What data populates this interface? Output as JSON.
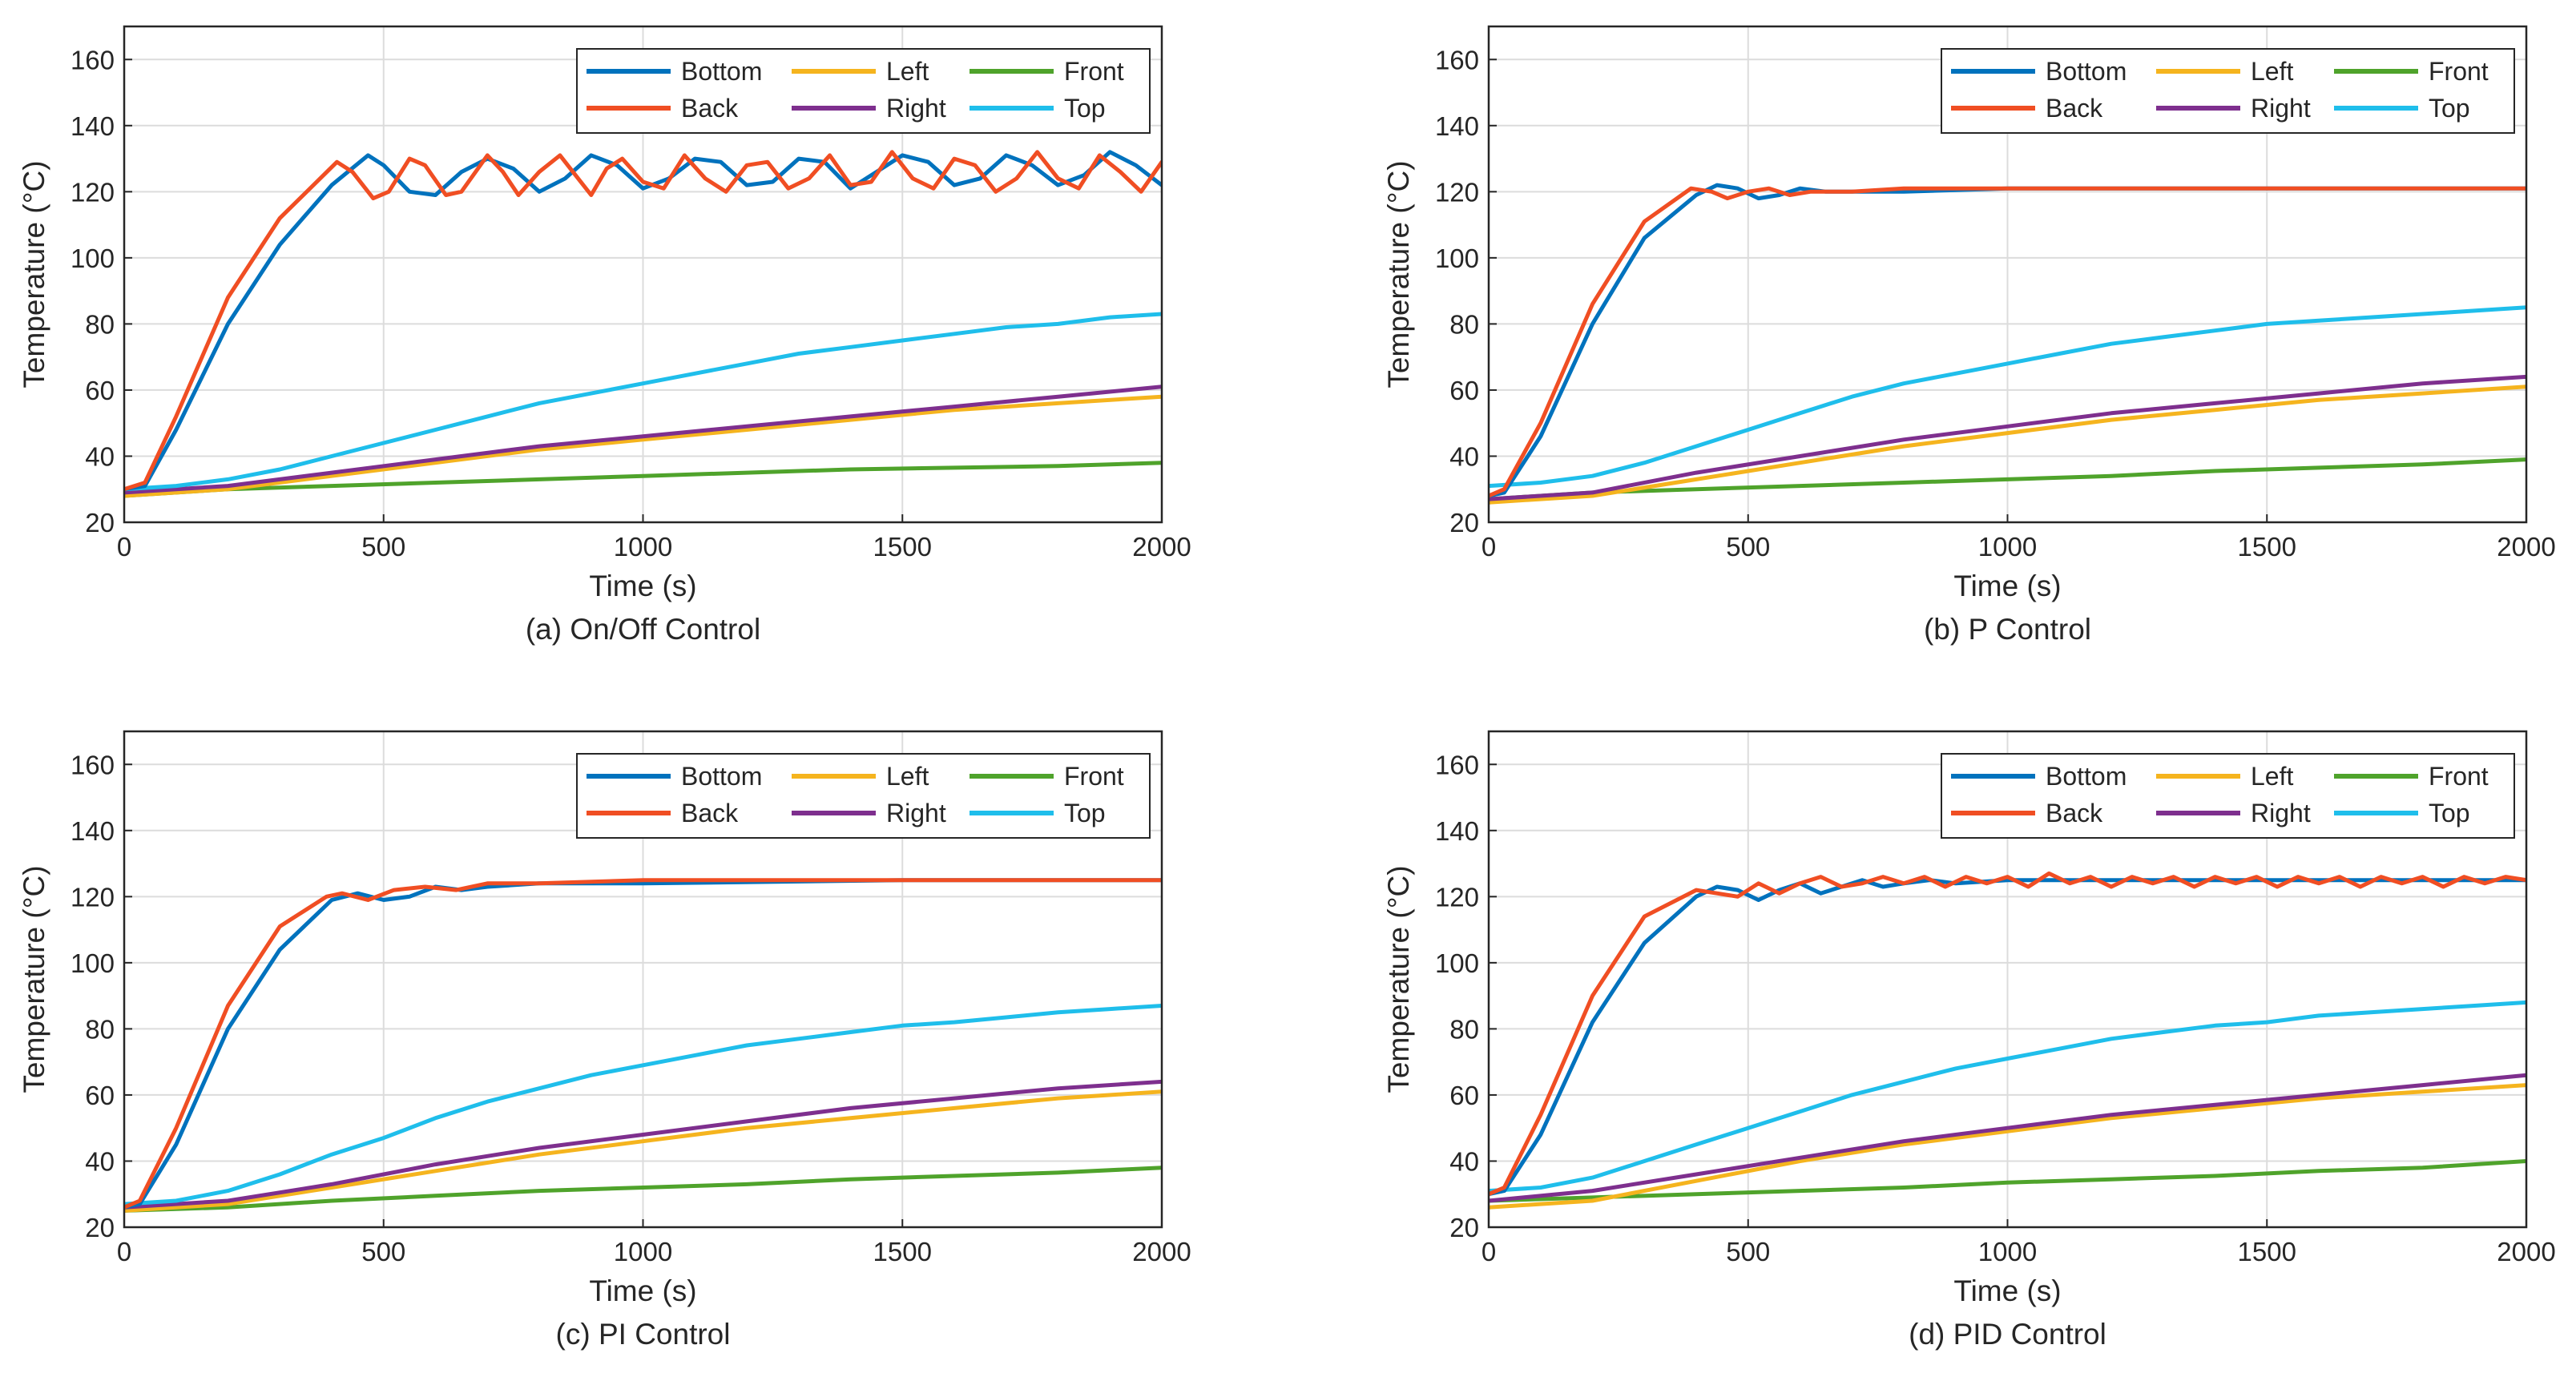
{
  "colors": {
    "Bottom": "#0072BD",
    "Back": "#F04E23",
    "Left": "#F5B41E",
    "Front": "#4FA32B",
    "Right": "#7E2F8E",
    "Top": "#1FBEEB"
  },
  "legend_order": [
    "Bottom",
    "Left",
    "Front",
    "Back",
    "Right",
    "Top"
  ],
  "chart_data": [
    {
      "type": "line",
      "caption": "(a) On/Off Control",
      "xlabel": "Time (s)",
      "ylabel": "Temperature (°C)",
      "xlim": [
        0,
        2000
      ],
      "ylim": [
        20,
        170
      ],
      "xticks": [
        0,
        500,
        1000,
        1500,
        2000
      ],
      "yticks": [
        20,
        40,
        60,
        80,
        100,
        120,
        140,
        160
      ],
      "grid": true,
      "legend": "top-right",
      "series": [
        {
          "name": "Bottom",
          "x": [
            0,
            40,
            100,
            200,
            300,
            400,
            470,
            500,
            550,
            600,
            650,
            700,
            750,
            800,
            850,
            900,
            950,
            1000,
            1050,
            1100,
            1150,
            1200,
            1250,
            1300,
            1350,
            1400,
            1450,
            1500,
            1550,
            1600,
            1650,
            1700,
            1750,
            1800,
            1850,
            1900,
            1950,
            2000
          ],
          "y": [
            30,
            31,
            48,
            80,
            104,
            122,
            131,
            128,
            120,
            119,
            126,
            130,
            127,
            120,
            124,
            131,
            128,
            121,
            124,
            130,
            129,
            122,
            123,
            130,
            129,
            121,
            126,
            131,
            129,
            122,
            124,
            131,
            128,
            122,
            125,
            132,
            128,
            122
          ]
        },
        {
          "name": "Back",
          "x": [
            0,
            40,
            100,
            200,
            300,
            410,
            440,
            480,
            510,
            550,
            580,
            620,
            650,
            700,
            730,
            760,
            800,
            840,
            870,
            900,
            930,
            960,
            1000,
            1040,
            1080,
            1120,
            1160,
            1200,
            1240,
            1280,
            1320,
            1360,
            1400,
            1440,
            1480,
            1520,
            1560,
            1600,
            1640,
            1680,
            1720,
            1760,
            1800,
            1840,
            1880,
            1920,
            1960,
            2000
          ],
          "y": [
            30,
            32,
            52,
            88,
            112,
            129,
            126,
            118,
            120,
            130,
            128,
            119,
            120,
            131,
            126,
            119,
            126,
            131,
            125,
            119,
            127,
            130,
            123,
            121,
            131,
            124,
            120,
            128,
            129,
            121,
            124,
            131,
            122,
            123,
            132,
            124,
            121,
            130,
            128,
            120,
            124,
            132,
            124,
            121,
            131,
            126,
            120,
            129
          ]
        },
        {
          "name": "Left",
          "x": [
            0,
            200,
            400,
            600,
            800,
            1000,
            1200,
            1400,
            1600,
            1800,
            2000
          ],
          "y": [
            28,
            30,
            34,
            38,
            42,
            45,
            48,
            51,
            54,
            56,
            58
          ]
        },
        {
          "name": "Right",
          "x": [
            0,
            200,
            400,
            600,
            800,
            1000,
            1200,
            1400,
            1600,
            1800,
            2000
          ],
          "y": [
            29,
            31,
            35,
            39,
            43,
            46,
            49,
            52,
            55,
            58,
            61
          ]
        },
        {
          "name": "Front",
          "x": [
            0,
            200,
            400,
            600,
            800,
            1000,
            1200,
            1400,
            1600,
            1800,
            2000
          ],
          "y": [
            28,
            30,
            31,
            32,
            33,
            34,
            35,
            36,
            36.5,
            37,
            38
          ]
        },
        {
          "name": "Top",
          "x": [
            0,
            100,
            200,
            300,
            400,
            500,
            600,
            700,
            800,
            900,
            1000,
            1100,
            1200,
            1300,
            1400,
            1500,
            1600,
            1700,
            1800,
            1900,
            2000
          ],
          "y": [
            30,
            31,
            33,
            36,
            40,
            44,
            48,
            52,
            56,
            59,
            62,
            65,
            68,
            71,
            73,
            75,
            77,
            79,
            80,
            82,
            83
          ]
        }
      ]
    },
    {
      "type": "line",
      "caption": "(b) P Control",
      "xlabel": "Time (s)",
      "ylabel": "Temperature (°C)",
      "xlim": [
        0,
        2000
      ],
      "ylim": [
        20,
        170
      ],
      "xticks": [
        0,
        500,
        1000,
        1500,
        2000
      ],
      "yticks": [
        20,
        40,
        60,
        80,
        100,
        120,
        140,
        160
      ],
      "grid": true,
      "legend": "top-right",
      "series": [
        {
          "name": "Bottom",
          "x": [
            0,
            30,
            100,
            200,
            300,
            400,
            440,
            480,
            520,
            560,
            600,
            650,
            700,
            800,
            1000,
            1500,
            2000
          ],
          "y": [
            28,
            29,
            46,
            80,
            106,
            119,
            122,
            121,
            118,
            119,
            121,
            120,
            120,
            120,
            121,
            121,
            121
          ]
        },
        {
          "name": "Back",
          "x": [
            0,
            30,
            100,
            200,
            300,
            390,
            430,
            460,
            500,
            540,
            580,
            620,
            700,
            800,
            1000,
            1500,
            2000
          ],
          "y": [
            28,
            30,
            50,
            86,
            111,
            121,
            120,
            118,
            120,
            121,
            119,
            120,
            120,
            121,
            121,
            121,
            121
          ]
        },
        {
          "name": "Left",
          "x": [
            0,
            200,
            400,
            600,
            800,
            1000,
            1200,
            1400,
            1600,
            1800,
            2000
          ],
          "y": [
            26,
            28,
            33,
            38,
            43,
            47,
            51,
            54,
            57,
            59,
            61
          ]
        },
        {
          "name": "Right",
          "x": [
            0,
            200,
            400,
            600,
            800,
            1000,
            1200,
            1400,
            1600,
            1800,
            2000
          ],
          "y": [
            27,
            29,
            35,
            40,
            45,
            49,
            53,
            56,
            59,
            62,
            64
          ]
        },
        {
          "name": "Front",
          "x": [
            0,
            200,
            400,
            600,
            800,
            1000,
            1200,
            1400,
            1600,
            1800,
            2000
          ],
          "y": [
            27,
            29,
            30,
            31,
            32,
            33,
            34,
            35.5,
            36.5,
            37.5,
            39
          ]
        },
        {
          "name": "Top",
          "x": [
            0,
            100,
            200,
            300,
            400,
            500,
            600,
            700,
            800,
            900,
            1000,
            1100,
            1200,
            1300,
            1400,
            1500,
            1600,
            1700,
            1800,
            1900,
            2000
          ],
          "y": [
            31,
            32,
            34,
            38,
            43,
            48,
            53,
            58,
            62,
            65,
            68,
            71,
            74,
            76,
            78,
            80,
            81,
            82,
            83,
            84,
            85
          ]
        }
      ]
    },
    {
      "type": "line",
      "caption": "(c) PI Control",
      "xlabel": "Time (s)",
      "ylabel": "Temperature (°C)",
      "xlim": [
        0,
        2000
      ],
      "ylim": [
        20,
        170
      ],
      "xticks": [
        0,
        500,
        1000,
        1500,
        2000
      ],
      "yticks": [
        20,
        40,
        60,
        80,
        100,
        120,
        140,
        160
      ],
      "grid": true,
      "legend": "top-right",
      "series": [
        {
          "name": "Bottom",
          "x": [
            0,
            30,
            100,
            200,
            300,
            400,
            450,
            500,
            550,
            600,
            650,
            700,
            800,
            1000,
            1500,
            2000
          ],
          "y": [
            26,
            27,
            45,
            80,
            104,
            119,
            121,
            119,
            120,
            123,
            122,
            123,
            124,
            124,
            125,
            125
          ]
        },
        {
          "name": "Back",
          "x": [
            0,
            30,
            100,
            200,
            300,
            390,
            420,
            470,
            520,
            580,
            640,
            700,
            800,
            1000,
            1500,
            2000
          ],
          "y": [
            26,
            28,
            50,
            87,
            111,
            120,
            121,
            119,
            122,
            123,
            122,
            124,
            124,
            125,
            125,
            125
          ]
        },
        {
          "name": "Left",
          "x": [
            0,
            200,
            400,
            600,
            800,
            1000,
            1200,
            1400,
            1600,
            1800,
            2000
          ],
          "y": [
            25,
            27,
            32,
            37,
            42,
            46,
            50,
            53,
            56,
            59,
            61
          ]
        },
        {
          "name": "Right",
          "x": [
            0,
            200,
            400,
            600,
            800,
            1000,
            1200,
            1400,
            1600,
            1800,
            2000
          ],
          "y": [
            26,
            28,
            33,
            39,
            44,
            48,
            52,
            56,
            59,
            62,
            64
          ]
        },
        {
          "name": "Front",
          "x": [
            0,
            200,
            400,
            600,
            800,
            1000,
            1200,
            1400,
            1600,
            1800,
            2000
          ],
          "y": [
            25,
            26,
            28,
            29.5,
            31,
            32,
            33,
            34.5,
            35.5,
            36.5,
            38
          ]
        },
        {
          "name": "Top",
          "x": [
            0,
            100,
            200,
            300,
            400,
            500,
            600,
            700,
            800,
            900,
            1000,
            1100,
            1200,
            1300,
            1400,
            1500,
            1600,
            1700,
            1800,
            1900,
            2000
          ],
          "y": [
            27,
            28,
            31,
            36,
            42,
            47,
            53,
            58,
            62,
            66,
            69,
            72,
            75,
            77,
            79,
            81,
            82,
            83.5,
            85,
            86,
            87
          ]
        }
      ]
    },
    {
      "type": "line",
      "caption": "(d) PID Control",
      "xlabel": "Time (s)",
      "ylabel": "Temperature (°C)",
      "xlim": [
        0,
        2000
      ],
      "ylim": [
        20,
        170
      ],
      "xticks": [
        0,
        500,
        1000,
        1500,
        2000
      ],
      "yticks": [
        20,
        40,
        60,
        80,
        100,
        120,
        140,
        160
      ],
      "grid": true,
      "legend": "top-right",
      "series": [
        {
          "name": "Bottom",
          "x": [
            0,
            30,
            100,
            200,
            300,
            400,
            440,
            480,
            520,
            560,
            600,
            640,
            680,
            720,
            760,
            800,
            850,
            900,
            1000,
            1200,
            1500,
            2000
          ],
          "y": [
            30,
            31,
            48,
            82,
            106,
            120,
            123,
            122,
            119,
            122,
            124,
            121,
            123,
            125,
            123,
            124,
            125,
            124,
            125,
            125,
            125,
            125
          ]
        },
        {
          "name": "Back",
          "x": [
            0,
            30,
            100,
            200,
            300,
            400,
            440,
            480,
            520,
            560,
            600,
            640,
            680,
            720,
            760,
            800,
            840,
            880,
            920,
            960,
            1000,
            1040,
            1080,
            1120,
            1160,
            1200,
            1240,
            1280,
            1320,
            1360,
            1400,
            1440,
            1480,
            1520,
            1560,
            1600,
            1640,
            1680,
            1720,
            1760,
            1800,
            1840,
            1880,
            1920,
            1960,
            2000
          ],
          "y": [
            30,
            32,
            54,
            90,
            114,
            122,
            121,
            120,
            124,
            121,
            124,
            126,
            123,
            124,
            126,
            124,
            126,
            123,
            126,
            124,
            126,
            123,
            127,
            124,
            126,
            123,
            126,
            124,
            126,
            123,
            126,
            124,
            126,
            123,
            126,
            124,
            126,
            123,
            126,
            124,
            126,
            123,
            126,
            124,
            126,
            125
          ]
        },
        {
          "name": "Left",
          "x": [
            0,
            200,
            400,
            600,
            800,
            1000,
            1200,
            1400,
            1600,
            1800,
            2000
          ],
          "y": [
            26,
            28,
            34,
            40,
            45,
            49,
            53,
            56,
            59,
            61,
            63
          ]
        },
        {
          "name": "Right",
          "x": [
            0,
            200,
            400,
            600,
            800,
            1000,
            1200,
            1400,
            1600,
            1800,
            2000
          ],
          "y": [
            28,
            31,
            36,
            41,
            46,
            50,
            54,
            57,
            60,
            63,
            66
          ]
        },
        {
          "name": "Front",
          "x": [
            0,
            200,
            400,
            600,
            800,
            1000,
            1200,
            1400,
            1600,
            1800,
            2000
          ],
          "y": [
            28,
            29,
            30,
            31,
            32,
            33.5,
            34.5,
            35.5,
            37,
            38,
            40
          ]
        },
        {
          "name": "Top",
          "x": [
            0,
            100,
            200,
            300,
            400,
            500,
            600,
            700,
            800,
            900,
            1000,
            1100,
            1200,
            1300,
            1400,
            1500,
            1600,
            1700,
            1800,
            1900,
            2000
          ],
          "y": [
            31,
            32,
            35,
            40,
            45,
            50,
            55,
            60,
            64,
            68,
            71,
            74,
            77,
            79,
            81,
            82,
            84,
            85,
            86,
            87,
            88
          ]
        }
      ]
    }
  ]
}
